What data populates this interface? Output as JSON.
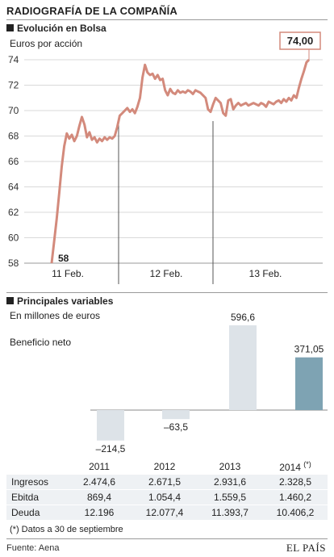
{
  "header": {
    "title": "RADIOGRAFÍA DE LA COMPAÑÍA"
  },
  "stock_section": {
    "title": "Evolución en Bolsa",
    "unit": "Euros por acción"
  },
  "vars_section": {
    "title": "Principales variables",
    "unit": "En millones de euros"
  },
  "chart_data": [
    {
      "type": "line",
      "title": "Evolución en Bolsa",
      "ylabel": "Euros por acción",
      "ylim": [
        58,
        75
      ],
      "yticks": [
        58,
        60,
        62,
        64,
        66,
        68,
        70,
        72,
        74
      ],
      "xlabels": [
        "11 Feb.",
        "12 Feb.",
        "13 Feb."
      ],
      "grid": true,
      "series_color": "#d38a7c",
      "annotations": [
        {
          "label": "58",
          "x": 0,
          "y": 58.0
        },
        {
          "label": "74,00",
          "x": 102,
          "y": 74.0
        }
      ],
      "series": [
        {
          "x": [
            0,
            1,
            2,
            3,
            4,
            5,
            6,
            7,
            8,
            9,
            10,
            11,
            12,
            13,
            14,
            15,
            16,
            17,
            18,
            19,
            20,
            21,
            22,
            23,
            24,
            25,
            26,
            27,
            28,
            29,
            30,
            31,
            32,
            33,
            34,
            35,
            36,
            37,
            38,
            39,
            40,
            41,
            42,
            43,
            44,
            45,
            46,
            47,
            48,
            49,
            50,
            51,
            52,
            53,
            54,
            55,
            56,
            57,
            58,
            59,
            60,
            61,
            62,
            63,
            64,
            65,
            66,
            67,
            68,
            69,
            70,
            71,
            72,
            73,
            74,
            75,
            76,
            77,
            78,
            79,
            80,
            81,
            82,
            83,
            84,
            85,
            86,
            87,
            88,
            89,
            90,
            91,
            92,
            93,
            94,
            95,
            96,
            97,
            98,
            99,
            100,
            101,
            102
          ],
          "y": [
            58.0,
            59.7,
            61.5,
            63.5,
            65.6,
            67.2,
            68.2,
            67.8,
            68.1,
            67.6,
            68.0,
            68.8,
            69.5,
            68.9,
            67.9,
            68.3,
            67.7,
            67.9,
            67.5,
            67.8,
            67.6,
            67.9,
            67.7,
            67.9,
            67.8,
            68.0,
            68.7,
            69.6,
            69.8,
            70.0,
            70.2,
            69.9,
            70.1,
            69.8,
            70.3,
            71.0,
            72.6,
            73.6,
            73.0,
            72.8,
            72.9,
            72.5,
            72.8,
            72.4,
            72.5,
            71.6,
            71.2,
            71.7,
            71.4,
            71.3,
            71.6,
            71.4,
            71.5,
            71.4,
            71.6,
            71.5,
            71.3,
            71.6,
            71.5,
            71.4,
            71.2,
            71.0,
            70.1,
            69.9,
            70.5,
            71.0,
            70.8,
            70.6,
            69.8,
            69.6,
            70.8,
            70.9,
            70.1,
            70.4,
            70.6,
            70.4,
            70.5,
            70.6,
            70.4,
            70.5,
            70.6,
            70.5,
            70.4,
            70.6,
            70.5,
            70.3,
            70.7,
            70.6,
            70.5,
            70.7,
            70.8,
            70.6,
            70.9,
            70.7,
            71.0,
            70.8,
            71.2,
            71.0,
            71.8,
            72.5,
            73.1,
            73.8,
            74.0
          ]
        }
      ]
    },
    {
      "type": "bar",
      "title": "Principales variables",
      "series_name": "Beneficio neto",
      "categories": [
        "2011",
        "2012",
        "2013",
        "2014"
      ],
      "values": [
        -214.5,
        -63.5,
        596.6,
        371.05
      ],
      "value_labels": [
        "–214,5",
        "–63,5",
        "596,6",
        "371,05"
      ],
      "ylim": [
        -250,
        650
      ],
      "colors": [
        "#dde3e8",
        "#dde3e8",
        "#dde3e8",
        "#7ea3b3"
      ]
    }
  ],
  "table": {
    "columns": [
      "2011",
      "2012",
      "2013",
      "2014"
    ],
    "last_col_mark": "(*)",
    "rows": [
      {
        "label": "Ingresos",
        "values": [
          "2.474,6",
          "2.671,5",
          "2.931,6",
          "2.328,5"
        ]
      },
      {
        "label": "Ebitda",
        "values": [
          "869,4",
          "1.054,4",
          "1.559,5",
          "1.460,2"
        ]
      },
      {
        "label": "Deuda",
        "values": [
          "12.196",
          "12.077,4",
          "11.393,7",
          "10.406,2"
        ]
      }
    ]
  },
  "footnote": "(*) Datos a 30 de septiembre",
  "source": "Fuente: Aena",
  "brand": "EL PAÍS"
}
